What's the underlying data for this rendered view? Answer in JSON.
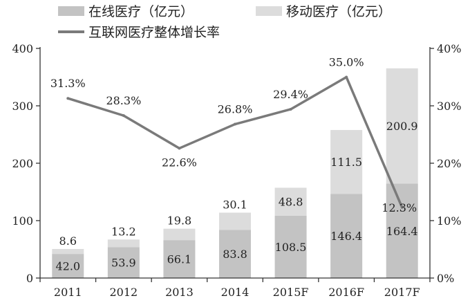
{
  "chart_data": {
    "type": "bar",
    "stacked": true,
    "categories": [
      "2011",
      "2012",
      "2013",
      "2014",
      "2015F",
      "2016F",
      "2017F"
    ],
    "series": [
      {
        "name": "在线医疗（亿元）",
        "type": "bar",
        "axis": "left",
        "color": "#c3c3c3",
        "values": [
          42.0,
          53.9,
          66.1,
          83.8,
          108.5,
          146.4,
          164.4
        ]
      },
      {
        "name": "移动医疗（亿元）",
        "type": "bar",
        "axis": "left",
        "color": "#dcdcdc",
        "values": [
          8.6,
          13.2,
          19.8,
          30.1,
          48.8,
          111.5,
          200.9
        ]
      },
      {
        "name": "互联网医疗整体增长率",
        "type": "line",
        "axis": "right",
        "color": "#7a7a7a",
        "values": [
          31.3,
          28.3,
          22.6,
          26.8,
          29.4,
          35.0,
          12.3
        ]
      }
    ],
    "bar_labels_bottom": [
      "42.0",
      "53.9",
      "66.1",
      "83.8",
      "108.5",
      "146.4",
      "164.4"
    ],
    "bar_labels_top": [
      "8.6",
      "13.2",
      "19.8",
      "30.1",
      "48.8",
      "111.5",
      "200.9"
    ],
    "line_labels": [
      "31.3%",
      "28.3%",
      "22.6%",
      "26.8%",
      "29.4%",
      "35.0%",
      "12.3%"
    ],
    "y_left": {
      "ylim": [
        0,
        400
      ],
      "ticks": [
        0,
        100,
        200,
        300,
        400
      ],
      "tick_labels": [
        "0",
        "100",
        "200",
        "300",
        "400"
      ]
    },
    "y_right": {
      "ylim": [
        0,
        40
      ],
      "ticks": [
        0,
        10,
        20,
        30,
        40
      ],
      "tick_labels": [
        "0%",
        "10%",
        "20%",
        "30%",
        "40%"
      ]
    },
    "grid": false,
    "legend_position": "top-left"
  }
}
